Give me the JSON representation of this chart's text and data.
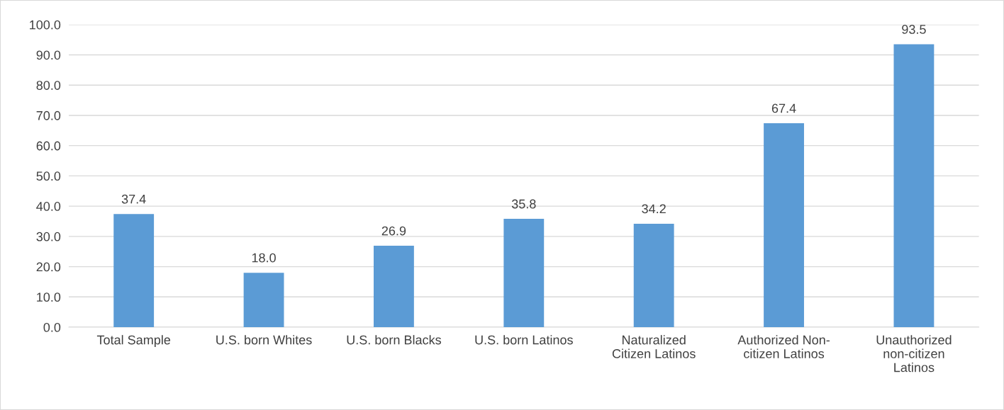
{
  "chart_data": {
    "type": "bar",
    "categories": [
      "Total Sample",
      "U.S. born Whites",
      "U.S. born Blacks",
      "U.S. born Latinos",
      "Naturalized\nCitizen Latinos",
      "Authorized Non-\ncitizen Latinos",
      "Unauthorized\nnon-citizen\nLatinos"
    ],
    "values": [
      37.4,
      18.0,
      26.9,
      35.8,
      34.2,
      67.4,
      93.5
    ],
    "value_labels": [
      "37.4",
      "18.0",
      "26.9",
      "35.8",
      "34.2",
      "67.4",
      "93.5"
    ],
    "color": "#5b9bd5",
    "ylim": [
      0,
      100
    ],
    "yticks": [
      {
        "value": 0,
        "label": "0.0"
      },
      {
        "value": 10,
        "label": "10.0"
      },
      {
        "value": 20,
        "label": "20.0"
      },
      {
        "value": 30,
        "label": "30.0"
      },
      {
        "value": 40,
        "label": "40.0"
      },
      {
        "value": 50,
        "label": "50.0"
      },
      {
        "value": 60,
        "label": "60.0"
      },
      {
        "value": 70,
        "label": "70.0"
      },
      {
        "value": 80,
        "label": "80.0"
      },
      {
        "value": 90,
        "label": "90.0"
      },
      {
        "value": 100,
        "label": "100.0"
      }
    ],
    "grid": "y"
  }
}
